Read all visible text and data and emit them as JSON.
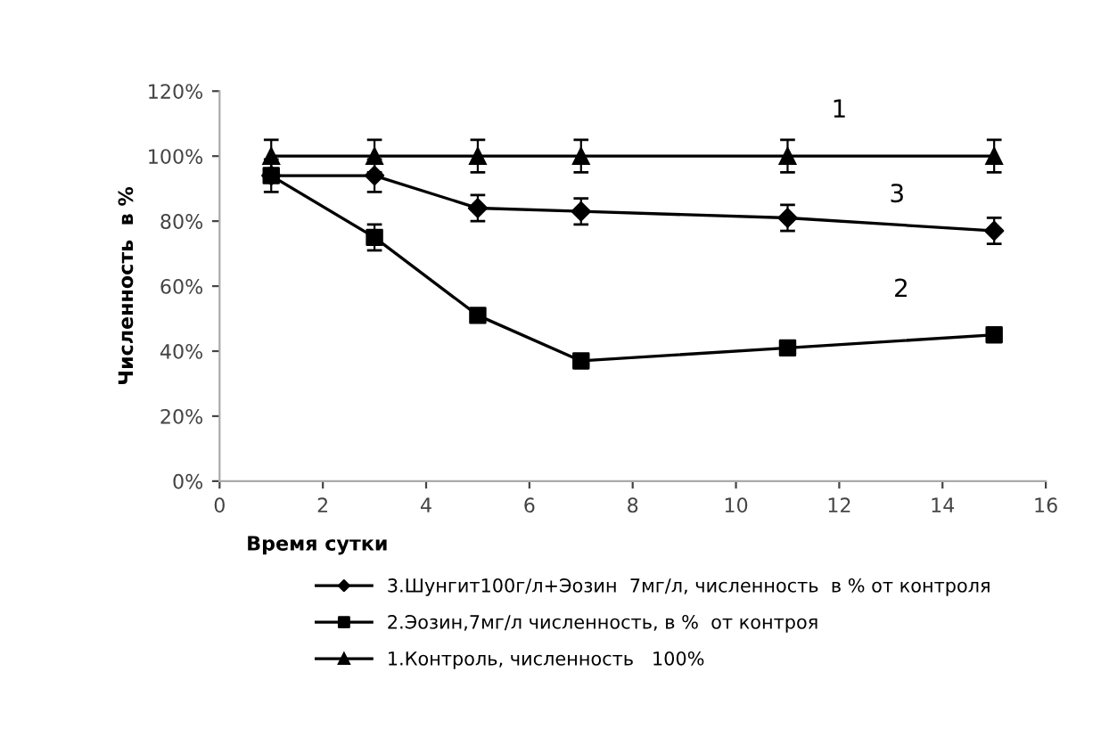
{
  "chart_data": {
    "type": "line",
    "xlabel": "Время сутки",
    "ylabel": "Численность  в %",
    "x": [
      1,
      3,
      5,
      7,
      11,
      15
    ],
    "series": [
      {
        "name": "3.Шунгит100г/л+Эозин  7мг/л, численность  в % от контроля",
        "color": "#000000",
        "marker": "diamond",
        "values": [
          94,
          94,
          84,
          83,
          81,
          77
        ],
        "errors": [
          5,
          5,
          4,
          4,
          4,
          4
        ]
      },
      {
        "name": "2.Эозин,7мг/л численность, в %  от контроя",
        "color": "#000000",
        "marker": "square",
        "values": [
          94,
          75,
          51,
          37,
          41,
          45
        ],
        "errors": [
          null,
          4,
          null,
          null,
          null,
          null
        ]
      },
      {
        "name": "1.Контроль, численность   100%",
        "color": "#000000",
        "marker": "triangle",
        "values": [
          100,
          100,
          100,
          100,
          100,
          100
        ],
        "errors": [
          5,
          5,
          5,
          5,
          5,
          5
        ]
      }
    ],
    "xlim": [
      0,
      16
    ],
    "xticks": [
      0,
      2,
      4,
      6,
      8,
      10,
      12,
      14,
      16
    ],
    "ylim": [
      0,
      120
    ],
    "yticks": [
      {
        "value": 0,
        "label": "0%"
      },
      {
        "value": 20,
        "label": "20%"
      },
      {
        "value": 40,
        "label": "40%"
      },
      {
        "value": 60,
        "label": "60%"
      },
      {
        "value": 80,
        "label": "80%"
      },
      {
        "value": 100,
        "label": "100%"
      },
      {
        "value": 120,
        "label": "120%"
      }
    ],
    "annotations": [
      "1",
      "3",
      "2"
    ],
    "grid": false,
    "legend": "bottom",
    "line_style": "solid"
  }
}
